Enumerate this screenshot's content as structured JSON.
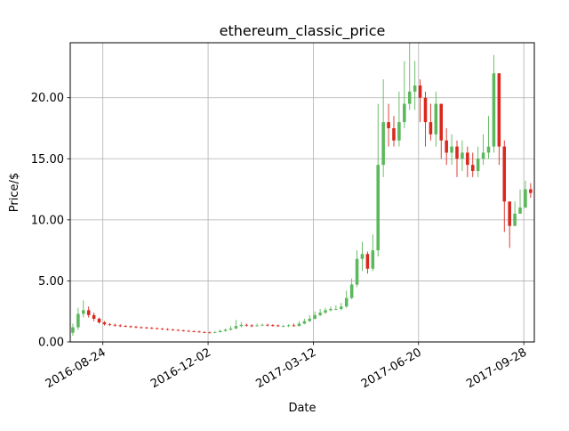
{
  "chart_data": {
    "type": "candlestick",
    "title": "ethereum_classic_price",
    "xlabel": "Date",
    "ylabel": "Price/$",
    "x_range": [
      "2016-07-24",
      "2017-10-08"
    ],
    "ylim": [
      0,
      24.5
    ],
    "x_ticks": [
      "2016-08-24",
      "2016-12-02",
      "2017-03-12",
      "2017-06-20",
      "2017-09-28"
    ],
    "y_ticks": [
      "0.00",
      "5.00",
      "10.00",
      "15.00",
      "20.00"
    ],
    "grid": true,
    "legend": "none",
    "up_color": "#5cb85c",
    "down_color": "#d9281e",
    "series": {
      "dates": [
        "2016-07-24",
        "2016-07-29",
        "2016-08-03",
        "2016-08-08",
        "2016-08-13",
        "2016-08-18",
        "2016-08-23",
        "2016-08-28",
        "2016-09-02",
        "2016-09-07",
        "2016-09-12",
        "2016-09-17",
        "2016-09-22",
        "2016-09-27",
        "2016-10-02",
        "2016-10-07",
        "2016-10-12",
        "2016-10-17",
        "2016-10-22",
        "2016-10-27",
        "2016-11-01",
        "2016-11-06",
        "2016-11-11",
        "2016-11-16",
        "2016-11-21",
        "2016-11-26",
        "2016-12-01",
        "2016-12-06",
        "2016-12-11",
        "2016-12-16",
        "2016-12-21",
        "2016-12-26",
        "2016-12-31",
        "2017-01-05",
        "2017-01-10",
        "2017-01-15",
        "2017-01-20",
        "2017-01-25",
        "2017-01-30",
        "2017-02-04",
        "2017-02-09",
        "2017-02-14",
        "2017-02-19",
        "2017-02-24",
        "2017-03-01",
        "2017-03-06",
        "2017-03-11",
        "2017-03-16",
        "2017-03-21",
        "2017-03-26",
        "2017-03-31",
        "2017-04-05",
        "2017-04-10",
        "2017-04-15",
        "2017-04-20",
        "2017-04-25",
        "2017-04-30",
        "2017-05-05",
        "2017-05-10",
        "2017-05-15",
        "2017-05-20",
        "2017-05-25",
        "2017-05-30",
        "2017-06-04",
        "2017-06-09",
        "2017-06-14",
        "2017-06-19",
        "2017-06-24",
        "2017-06-29",
        "2017-07-04",
        "2017-07-09",
        "2017-07-14",
        "2017-07-19",
        "2017-07-24",
        "2017-07-29",
        "2017-08-03",
        "2017-08-08",
        "2017-08-13",
        "2017-08-18",
        "2017-08-23",
        "2017-08-28",
        "2017-09-02",
        "2017-09-07",
        "2017-09-12",
        "2017-09-17",
        "2017-09-22",
        "2017-09-27",
        "2017-10-02"
      ],
      "open": [
        0.75,
        1.2,
        2.3,
        2.6,
        2.2,
        1.9,
        1.6,
        1.45,
        1.4,
        1.35,
        1.3,
        1.28,
        1.25,
        1.2,
        1.18,
        1.15,
        1.12,
        1.1,
        1.05,
        1.0,
        0.98,
        0.95,
        0.9,
        0.88,
        0.85,
        0.8,
        0.78,
        0.75,
        0.8,
        0.9,
        1.0,
        1.1,
        1.3,
        1.4,
        1.35,
        1.3,
        1.35,
        1.4,
        1.38,
        1.35,
        1.3,
        1.3,
        1.35,
        1.3,
        1.5,
        1.7,
        1.9,
        2.2,
        2.4,
        2.6,
        2.7,
        2.7,
        2.9,
        3.6,
        4.7,
        6.8,
        7.2,
        6.0,
        7.5,
        14.5,
        18.0,
        17.5,
        16.5,
        18.0,
        19.5,
        20.5,
        21.0,
        20.0,
        18.0,
        17.0,
        19.5,
        16.5,
        15.5,
        16.0,
        15.0,
        15.5,
        14.5,
        14.0,
        15.0,
        15.5,
        16.0,
        22.0,
        16.0,
        11.5,
        9.5,
        10.5,
        11.0,
        12.5
      ],
      "close": [
        1.2,
        2.3,
        2.6,
        2.2,
        1.9,
        1.6,
        1.45,
        1.4,
        1.35,
        1.3,
        1.28,
        1.25,
        1.2,
        1.18,
        1.15,
        1.12,
        1.1,
        1.05,
        1.0,
        0.98,
        0.95,
        0.9,
        0.88,
        0.85,
        0.8,
        0.78,
        0.75,
        0.8,
        0.9,
        1.0,
        1.1,
        1.3,
        1.4,
        1.35,
        1.3,
        1.35,
        1.4,
        1.38,
        1.35,
        1.3,
        1.3,
        1.35,
        1.3,
        1.5,
        1.7,
        1.9,
        2.2,
        2.4,
        2.6,
        2.7,
        2.7,
        2.9,
        3.6,
        4.7,
        6.8,
        7.2,
        6.0,
        7.5,
        14.5,
        18.0,
        17.5,
        16.5,
        18.0,
        19.5,
        20.5,
        21.0,
        20.0,
        18.0,
        17.0,
        19.5,
        16.5,
        15.5,
        16.0,
        15.0,
        15.5,
        14.5,
        14.0,
        15.0,
        15.5,
        16.0,
        22.0,
        16.0,
        11.5,
        9.5,
        10.5,
        11.0,
        12.5,
        12.2
      ],
      "high": [
        1.5,
        2.8,
        3.4,
        2.9,
        2.4,
        2.0,
        1.7,
        1.55,
        1.5,
        1.45,
        1.4,
        1.35,
        1.32,
        1.28,
        1.25,
        1.22,
        1.18,
        1.15,
        1.12,
        1.08,
        1.05,
        1.0,
        0.98,
        0.95,
        0.92,
        0.88,
        0.84,
        0.9,
        1.0,
        1.1,
        1.3,
        1.8,
        1.6,
        1.5,
        1.45,
        1.5,
        1.5,
        1.5,
        1.45,
        1.42,
        1.4,
        1.45,
        1.5,
        1.7,
        1.9,
        2.2,
        2.5,
        2.7,
        2.8,
        2.9,
        3.0,
        3.2,
        4.2,
        5.2,
        7.5,
        8.2,
        7.4,
        8.8,
        19.5,
        21.5,
        19.5,
        18.5,
        20.5,
        23.0,
        24.5,
        23.0,
        21.5,
        20.5,
        19.5,
        20.5,
        19.5,
        17.5,
        17.0,
        16.5,
        16.5,
        16.0,
        15.5,
        16.0,
        17.0,
        18.5,
        23.5,
        22.0,
        16.5,
        11.5,
        11.5,
        12.5,
        13.2,
        13.0
      ],
      "low": [
        0.5,
        1.0,
        2.0,
        2.0,
        1.7,
        1.5,
        1.35,
        1.3,
        1.25,
        1.22,
        1.2,
        1.15,
        1.12,
        1.1,
        1.08,
        1.05,
        1.02,
        0.98,
        0.95,
        0.92,
        0.9,
        0.85,
        0.82,
        0.8,
        0.75,
        0.72,
        0.7,
        0.72,
        0.78,
        0.85,
        0.95,
        1.05,
        1.2,
        1.25,
        1.2,
        1.25,
        1.3,
        1.28,
        1.25,
        1.22,
        1.2,
        1.22,
        1.25,
        1.28,
        1.45,
        1.65,
        1.85,
        2.1,
        2.3,
        2.5,
        2.6,
        2.6,
        2.8,
        3.5,
        4.5,
        5.8,
        5.6,
        5.8,
        7.0,
        13.5,
        16.0,
        16.0,
        16.0,
        17.5,
        19.0,
        19.0,
        18.0,
        16.0,
        16.5,
        16.0,
        15.0,
        14.5,
        14.5,
        13.5,
        14.0,
        13.5,
        13.5,
        13.5,
        14.5,
        15.0,
        15.5,
        14.5,
        9.0,
        7.7,
        9.5,
        10.5,
        11.0,
        11.8
      ]
    }
  }
}
